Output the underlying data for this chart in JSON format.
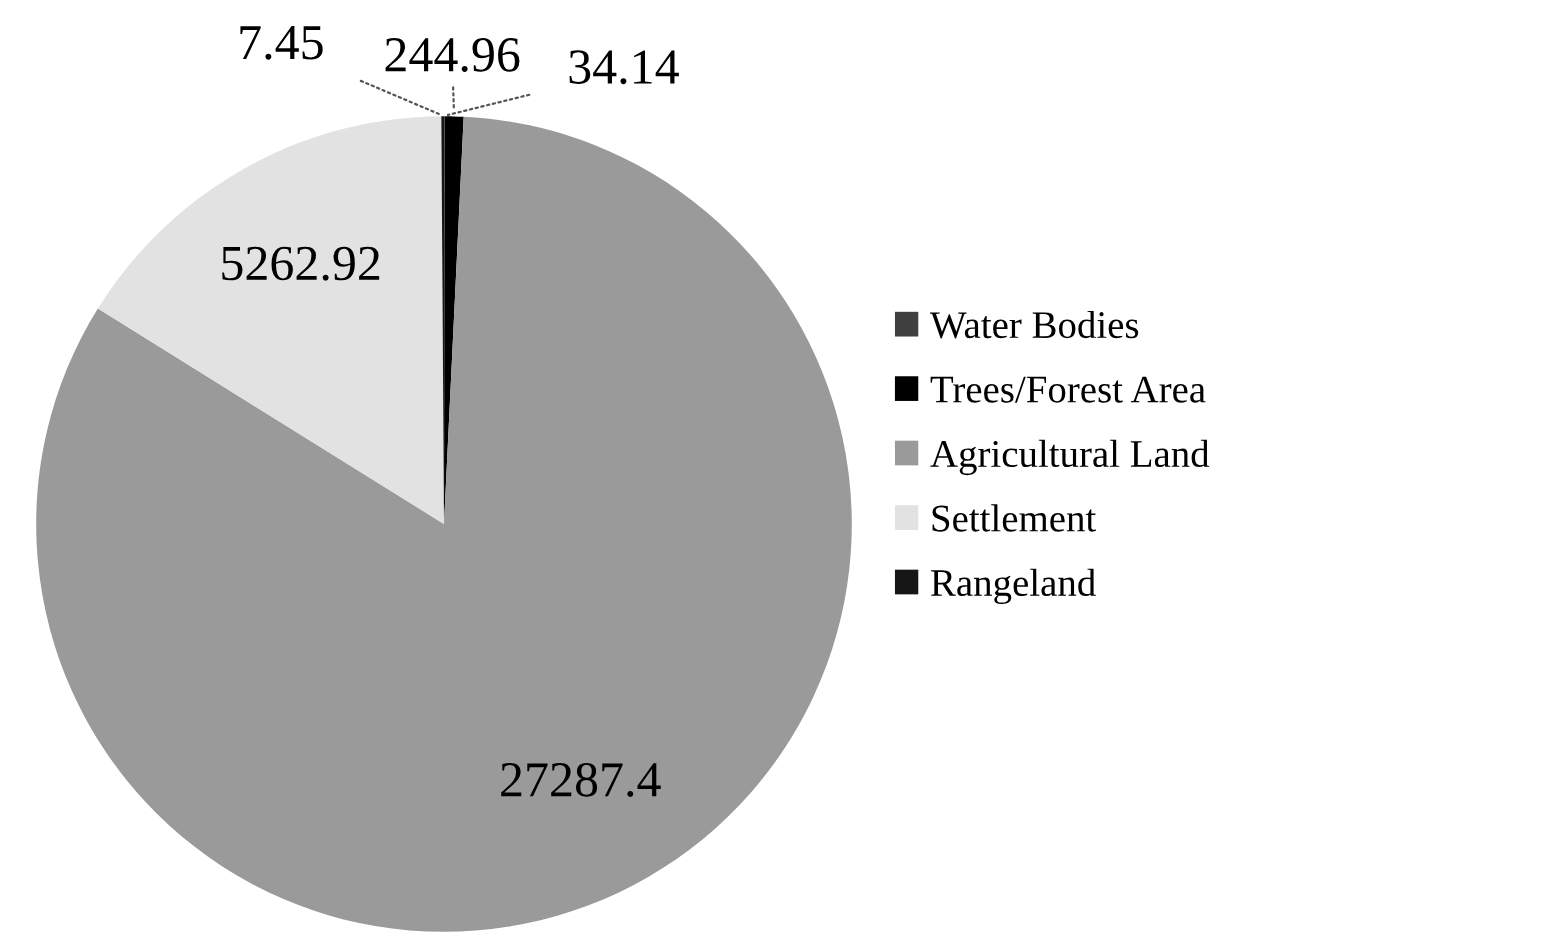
{
  "chart_data": {
    "type": "pie",
    "categories": [
      "Water Bodies",
      "Trees/Forest Area",
      "Agricultural Land",
      "Settlement",
      "Rangeland"
    ],
    "values": [
      7.45,
      244.96,
      27287.4,
      5262.92,
      34.14
    ],
    "colors": [
      "#404040",
      "#000000",
      "#9a9a9a",
      "#e2e2e2",
      "#161616"
    ],
    "data_labels": true,
    "legend": "right"
  }
}
